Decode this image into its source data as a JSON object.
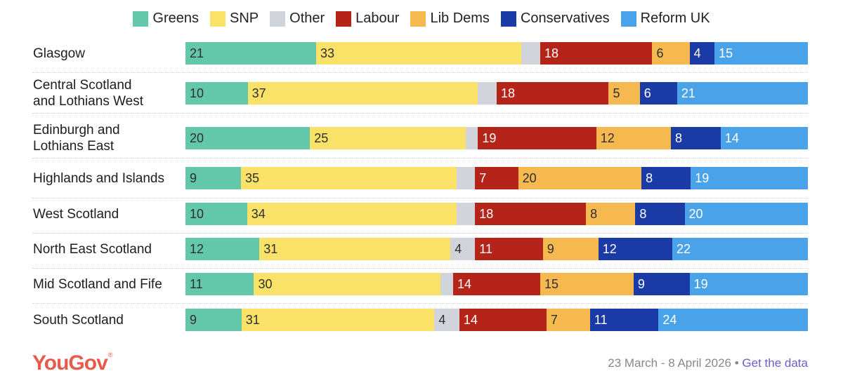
{
  "chart_data": {
    "type": "bar",
    "orientation": "horizontal",
    "stacked": true,
    "normalized": true,
    "legend_position": "top",
    "categories": [
      "Glasgow",
      "Central Scotland and Lothians West",
      "Edinburgh and Lothians East",
      "Highlands and Islands",
      "West Scotland",
      "North East Scotland",
      "Mid Scotland and Fife",
      "South Scotland"
    ],
    "category_lines": [
      [
        "Glasgow"
      ],
      [
        "Central Scotland",
        "and Lothians West"
      ],
      [
        "Edinburgh and",
        "Lothians East"
      ],
      [
        "Highlands and Islands"
      ],
      [
        "West Scotland"
      ],
      [
        "North East Scotland"
      ],
      [
        "Mid Scotland and Fife"
      ],
      [
        "South Scotland"
      ]
    ],
    "series": [
      {
        "name": "Greens",
        "color": "#63c8a9",
        "label_color": "#2e2e2e",
        "values": [
          21,
          10,
          20,
          9,
          10,
          12,
          11,
          9
        ]
      },
      {
        "name": "SNP",
        "color": "#fae269",
        "label_color": "#2e2e2e",
        "values": [
          33,
          37,
          25,
          35,
          34,
          31,
          30,
          31
        ]
      },
      {
        "name": "Other",
        "color": "#d2d4db",
        "label_color": "#2e2e2e",
        "values": [
          3,
          3,
          2,
          3,
          3,
          4,
          2,
          4
        ]
      },
      {
        "name": "Labour",
        "color": "#b42418",
        "label_color": "#ffffff",
        "values": [
          18,
          18,
          19,
          7,
          18,
          11,
          14,
          14
        ]
      },
      {
        "name": "Lib Dems",
        "color": "#f6b94f",
        "label_color": "#2e2e2e",
        "values": [
          6,
          5,
          12,
          20,
          8,
          9,
          15,
          7
        ]
      },
      {
        "name": "Conservatives",
        "color": "#1a3aa5",
        "label_color": "#ffffff",
        "values": [
          4,
          6,
          8,
          8,
          8,
          12,
          9,
          11
        ]
      },
      {
        "name": "Reform UK",
        "color": "#4aa3e8",
        "label_color": "#ffffff",
        "values": [
          15,
          21,
          14,
          19,
          20,
          22,
          19,
          24
        ]
      }
    ],
    "show_labels": [
      [
        true,
        true,
        false,
        true,
        true,
        true,
        true
      ],
      [
        true,
        true,
        false,
        true,
        true,
        true,
        true
      ],
      [
        true,
        true,
        false,
        true,
        true,
        true,
        true
      ],
      [
        true,
        true,
        false,
        true,
        true,
        true,
        true
      ],
      [
        true,
        true,
        false,
        true,
        true,
        true,
        true
      ],
      [
        true,
        true,
        true,
        true,
        true,
        true,
        true
      ],
      [
        true,
        true,
        false,
        true,
        true,
        true,
        true
      ],
      [
        true,
        true,
        true,
        true,
        true,
        true,
        true
      ]
    ],
    "grid": false
  },
  "footer": {
    "logo": "YouGov",
    "logo_mark": "®",
    "date": "23 March - 8 April 2026",
    "separator": "•",
    "link": "Get the data"
  }
}
